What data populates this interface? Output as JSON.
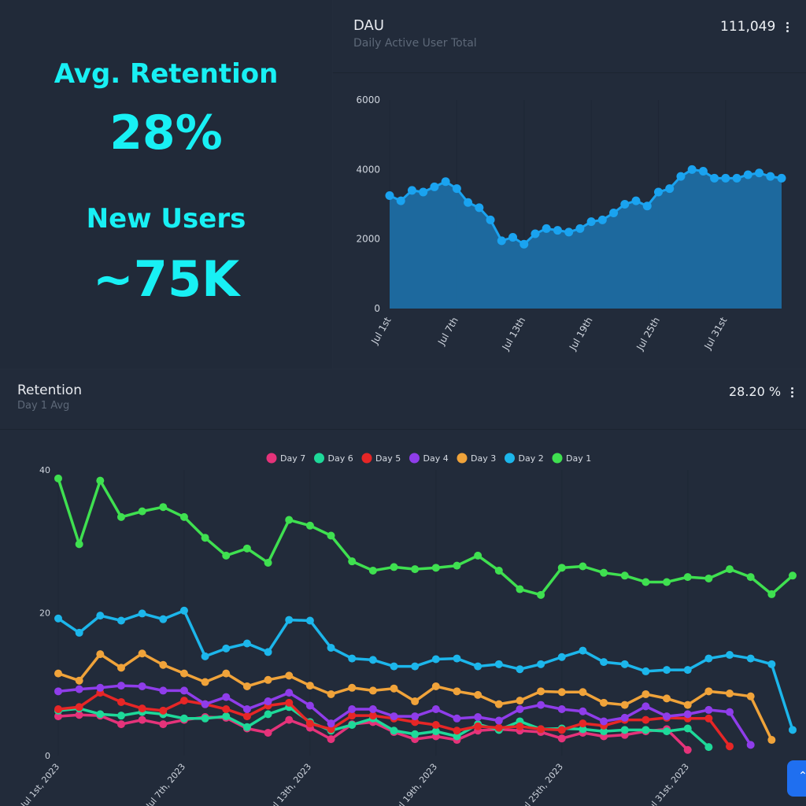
{
  "kpi": {
    "retention_label": "Avg. Retention",
    "retention_value": "28%",
    "new_users_label": "New Users",
    "new_users_value": "~75K",
    "accent": "#18f0f4"
  },
  "dau_card": {
    "title": "DAU",
    "subtitle": "Daily Active User Total",
    "value": "111,049",
    "menu_icon": "vertical-dots-icon"
  },
  "retention_card": {
    "title": "Retention",
    "subtitle": "Day 1 Avg",
    "value": "28.20 %",
    "menu_icon": "vertical-dots-icon"
  },
  "scroll_button": {
    "icon": "chevron-up-icon",
    "glyph": "⌃",
    "color": "#1f6ff0"
  },
  "chart_data": [
    {
      "type": "area",
      "title": "",
      "xlabel": "",
      "ylabel": "",
      "ylim": [
        0,
        6000
      ],
      "yticks": [
        "0",
        "2000",
        "4000",
        "6000"
      ],
      "xticks": [
        "Jul 1st",
        "Jul 7th",
        "Jul 13th",
        "Jul 19th",
        "Jul 25th",
        "Jul 31st"
      ],
      "color": "#1aa3f0",
      "grid": false,
      "series": [
        {
          "values": [
            3250,
            3100,
            3400,
            3350,
            3500,
            3650,
            3450,
            3050,
            2900,
            2550,
            1950,
            2050,
            1850,
            2150,
            2300,
            2250,
            2200,
            2300,
            2500,
            2550,
            2750,
            3000,
            3100,
            2950,
            3350,
            3450,
            3800,
            4000,
            3950,
            3750,
            3750,
            3750,
            3850,
            3900,
            3800,
            3750
          ]
        }
      ]
    },
    {
      "type": "line",
      "title": "",
      "xlabel": "",
      "ylabel": "",
      "ylim": [
        0,
        40
      ],
      "yticks": [
        "0",
        "20",
        "40"
      ],
      "xticks": [
        "Jul 1st, 2023",
        "Jul 7th, 2023",
        "Jul 13th, 2023",
        "Jul 19th, 2023",
        "Jul 25th, 2023",
        "Jul 31st, 2023"
      ],
      "legend_position": "top",
      "grid": false,
      "series": [
        {
          "name": "Day 7",
          "color": "#e5337a",
          "values": [
            5.5,
            5.7,
            5.6,
            4.4,
            5.0,
            4.4,
            5.0,
            5.4,
            5.3,
            3.8,
            3.2,
            5.0,
            3.9,
            2.3,
            4.4,
            4.7,
            3.3,
            2.3,
            2.7,
            2.2,
            3.5,
            3.7,
            3.5,
            3.3,
            2.4,
            3.2,
            2.7,
            2.9,
            3.4,
            3.7,
            0.8
          ]
        },
        {
          "name": "Day 6",
          "color": "#1ed999",
          "values": [
            6.3,
            6.6,
            5.8,
            5.6,
            6.1,
            5.8,
            5.2,
            5.2,
            5.5,
            4.0,
            5.8,
            6.8,
            4.7,
            3.5,
            4.3,
            5.2,
            3.5,
            3.0,
            3.4,
            2.7,
            4.4,
            3.6,
            4.8,
            3.7,
            3.8,
            3.7,
            3.4,
            3.6,
            3.6,
            3.4,
            3.8,
            1.2
          ]
        },
        {
          "name": "Day 5",
          "color": "#e62626",
          "values": [
            6.5,
            6.8,
            8.8,
            7.5,
            6.6,
            6.3,
            7.7,
            7.2,
            6.5,
            5.5,
            7.0,
            7.4,
            4.5,
            3.7,
            5.6,
            5.6,
            5.2,
            4.7,
            4.3,
            3.5,
            4.1,
            3.9,
            4.1,
            3.7,
            3.6,
            4.5,
            4.2,
            5.0,
            5.0,
            5.3,
            5.2,
            5.2,
            1.3
          ]
        },
        {
          "name": "Day 4",
          "color": "#8f3dea",
          "values": [
            9.0,
            9.3,
            9.5,
            9.8,
            9.7,
            9.1,
            9.1,
            7.2,
            8.2,
            6.5,
            7.6,
            8.8,
            7.0,
            4.5,
            6.5,
            6.5,
            5.5,
            5.5,
            6.5,
            5.2,
            5.4,
            4.9,
            6.5,
            7.1,
            6.5,
            6.2,
            4.8,
            5.3,
            6.9,
            5.5,
            5.8,
            6.4,
            6.1,
            1.5
          ]
        },
        {
          "name": "Day 3",
          "color": "#f0a33a",
          "values": [
            11.5,
            10.5,
            14.2,
            12.3,
            14.3,
            12.7,
            11.5,
            10.3,
            11.5,
            9.7,
            10.6,
            11.2,
            9.8,
            8.6,
            9.5,
            9.1,
            9.4,
            7.6,
            9.7,
            9.0,
            8.5,
            7.2,
            7.7,
            9.0,
            8.9,
            8.9,
            7.4,
            7.1,
            8.6,
            8.0,
            7.1,
            9.0,
            8.7,
            8.3,
            2.2
          ]
        },
        {
          "name": "Day 2",
          "color": "#1cb6eb",
          "values": [
            19.2,
            17.2,
            19.6,
            18.9,
            19.9,
            19.1,
            20.3,
            13.9,
            15.0,
            15.7,
            14.5,
            19.0,
            18.9,
            15.1,
            13.6,
            13.4,
            12.5,
            12.5,
            13.5,
            13.6,
            12.5,
            12.8,
            12.1,
            12.8,
            13.8,
            14.7,
            13.1,
            12.8,
            11.8,
            12.0,
            12.0,
            13.6,
            14.1,
            13.6,
            12.8,
            3.6
          ]
        },
        {
          "name": "Day 1",
          "color": "#3fe050",
          "values": [
            38.8,
            29.6,
            38.5,
            33.4,
            34.2,
            34.8,
            33.4,
            30.5,
            28.0,
            29.0,
            27.0,
            33.0,
            32.2,
            30.8,
            27.2,
            25.9,
            26.4,
            26.1,
            26.3,
            26.6,
            28.0,
            25.9,
            23.3,
            22.5,
            26.3,
            26.5,
            25.6,
            25.2,
            24.3,
            24.3,
            25.0,
            24.8,
            26.1,
            25.0,
            22.6,
            25.2
          ]
        }
      ]
    }
  ]
}
